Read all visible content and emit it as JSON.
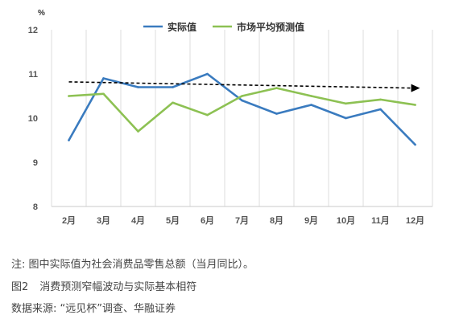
{
  "chart_data": {
    "type": "line",
    "y_unit": "%",
    "categories": [
      "2月",
      "3月",
      "4月",
      "5月",
      "6月",
      "7月",
      "8月",
      "9月",
      "10月",
      "11月",
      "12月"
    ],
    "ylim": [
      8,
      12
    ],
    "yticks": [
      8,
      9,
      10,
      11,
      12
    ],
    "grid": "vertical",
    "legend_position": "top",
    "series": [
      {
        "name": "实际值",
        "color": "#3a7bbf",
        "values": [
          9.5,
          10.9,
          10.7,
          10.7,
          11.0,
          10.4,
          10.1,
          10.3,
          10.0,
          10.2,
          9.4
        ]
      },
      {
        "name": "市场平均预测值",
        "color": "#8dc153",
        "values": [
          10.5,
          10.55,
          9.7,
          10.35,
          10.07,
          10.5,
          10.68,
          10.5,
          10.33,
          10.42,
          10.3
        ]
      }
    ],
    "trend": {
      "style": "dashed-arrow",
      "color": "#000000",
      "start": 10.82,
      "end": 10.68
    }
  },
  "captions": {
    "note": "注: 图中实际值为社会消费品零售总额（当月同比）。",
    "figure_no": "图2",
    "figure_title": "消费预测窄幅波动与实际基本相符",
    "source": "数据来源: “远见杯”调查、华融证券"
  }
}
